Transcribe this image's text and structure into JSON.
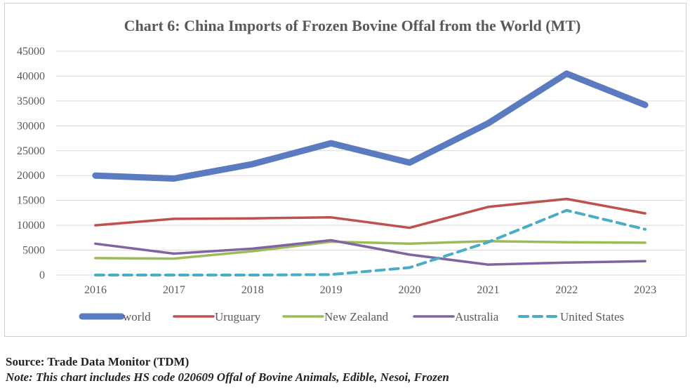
{
  "chart_data": {
    "type": "line",
    "title": "Chart 6: China Imports of Frozen Bovine Offal from the World (MT)",
    "categories": [
      "2016",
      "2017",
      "2018",
      "2019",
      "2020",
      "2021",
      "2022",
      "2023"
    ],
    "ylim": [
      0,
      45000
    ],
    "yticks": [
      "0",
      "5000",
      "10000",
      "15000",
      "20000",
      "25000",
      "30000",
      "35000",
      "40000",
      "45000"
    ],
    "grid": true,
    "legend_position": "bottom",
    "series": [
      {
        "name": "world",
        "color": "#5B7BC0",
        "style": "solid-thick",
        "values": [
          20000,
          19400,
          22300,
          26500,
          22600,
          30500,
          40500,
          34200
        ]
      },
      {
        "name": "Uruguary",
        "color": "#C0504D",
        "style": "solid",
        "values": [
          10000,
          11300,
          11400,
          11600,
          9500,
          13700,
          15300,
          12400
        ]
      },
      {
        "name": "New Zealand",
        "color": "#9BBB59",
        "style": "solid",
        "values": [
          3400,
          3300,
          4800,
          6700,
          6300,
          6800,
          6600,
          6500
        ]
      },
      {
        "name": "Australia",
        "color": "#8064A2",
        "style": "solid",
        "values": [
          6300,
          4300,
          5300,
          7000,
          4100,
          2100,
          2500,
          2800
        ]
      },
      {
        "name": "United States",
        "color": "#4BACC6",
        "style": "dashed",
        "values": [
          0,
          0,
          0,
          100,
          1500,
          6600,
          13000,
          9200
        ]
      }
    ]
  },
  "footer": {
    "source": "Source: Trade Data Monitor (TDM)",
    "note": "Note: This chart includes HS code 020609 Offal of Bovine Animals, Edible, Nesoi, Frozen"
  }
}
